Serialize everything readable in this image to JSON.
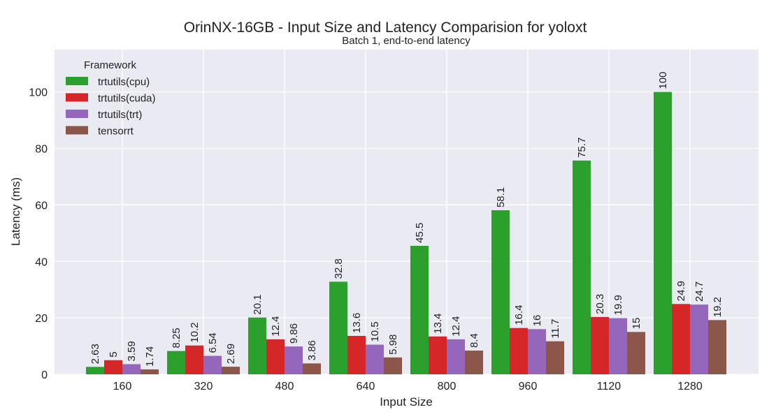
{
  "chart_data": {
    "type": "bar",
    "title": "OrinNX-16GB - Input Size and Latency Comparision for yoloxt",
    "subtitle": "Batch 1, end-to-end latency",
    "xlabel": "Input Size",
    "ylabel": "Latency (ms)",
    "ylim": [
      0,
      115
    ],
    "yticks": [
      "0",
      "20",
      "40",
      "60",
      "80",
      "100"
    ],
    "grid": true,
    "legend": {
      "title": "Framework",
      "position": "top-left"
    },
    "categories": [
      "160",
      "320",
      "480",
      "640",
      "800",
      "960",
      "1120",
      "1280"
    ],
    "series": [
      {
        "name": "trtutils(cpu)",
        "color": "#2ca02c",
        "values": [
          2.63,
          8.25,
          20.1,
          32.8,
          45.5,
          58.1,
          75.7,
          100
        ],
        "labels": [
          "2.63",
          "8.25",
          "20.1",
          "32.8",
          "45.5",
          "58.1",
          "75.7",
          "100"
        ]
      },
      {
        "name": "trtutils(cuda)",
        "color": "#d62728",
        "values": [
          5,
          10.2,
          12.4,
          13.6,
          13.4,
          16.4,
          20.3,
          24.9
        ],
        "labels": [
          "5",
          "10.2",
          "12.4",
          "13.6",
          "13.4",
          "16.4",
          "20.3",
          "24.9"
        ]
      },
      {
        "name": "trtutils(trt)",
        "color": "#9467bd",
        "values": [
          3.59,
          6.54,
          9.86,
          10.5,
          12.4,
          16,
          19.9,
          24.7
        ],
        "labels": [
          "3.59",
          "6.54",
          "9.86",
          "10.5",
          "12.4",
          "16",
          "19.9",
          "24.7"
        ]
      },
      {
        "name": "tensorrt",
        "color": "#8c564b",
        "values": [
          1.74,
          2.69,
          3.86,
          5.98,
          8.4,
          11.7,
          15,
          19.2
        ],
        "labels": [
          "1.74",
          "2.69",
          "3.86",
          "5.98",
          "8.4",
          "11.7",
          "15",
          "19.2"
        ]
      }
    ]
  }
}
